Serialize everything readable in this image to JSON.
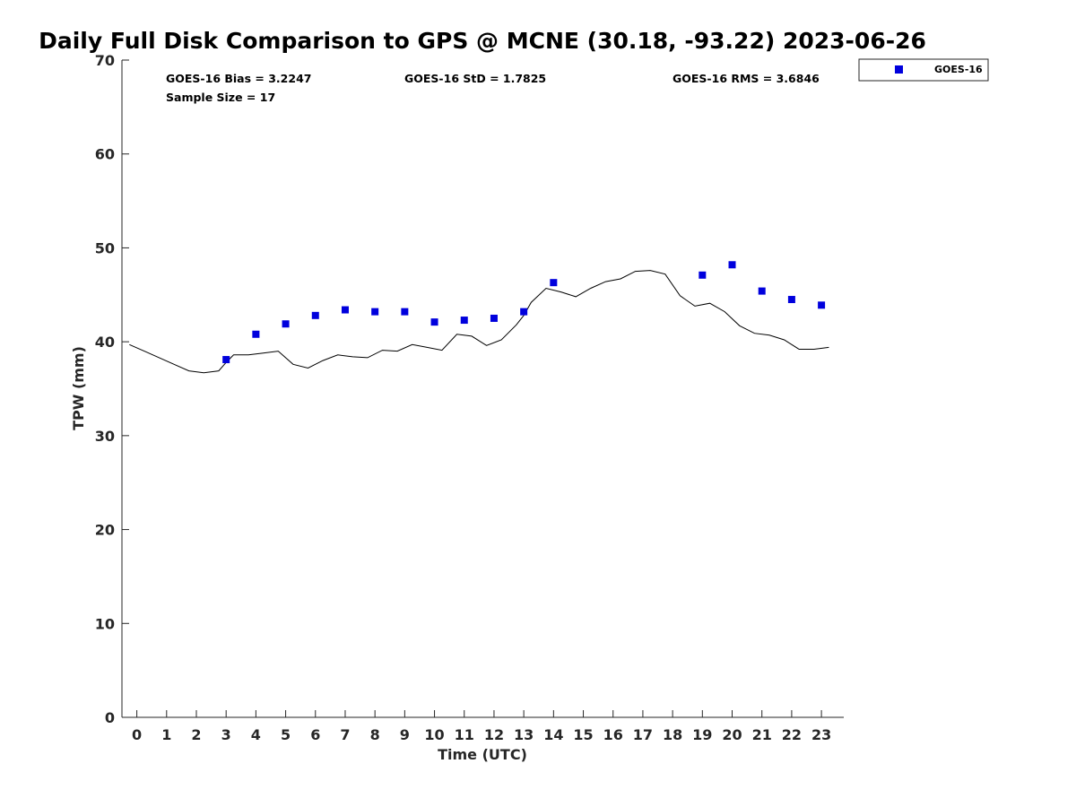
{
  "chart_data": {
    "type": "scatter",
    "title": "Daily Full Disk Comparison to GPS @ MCNE (30.18, -93.22) 2023-06-26",
    "xlabel": "Time (UTC)",
    "ylabel": "TPW (mm)",
    "xlim": [
      -0.5,
      23.75
    ],
    "ylim": [
      0,
      70
    ],
    "x_ticks": [
      0,
      1,
      2,
      3,
      4,
      5,
      6,
      7,
      8,
      9,
      10,
      11,
      12,
      13,
      14,
      15,
      16,
      17,
      18,
      19,
      20,
      21,
      22,
      23
    ],
    "y_ticks": [
      0,
      10,
      20,
      30,
      40,
      50,
      60,
      70
    ],
    "grid": false,
    "stats": {
      "bias": "GOES-16 Bias = 3.2247",
      "std": "GOES-16 StD = 1.7825",
      "rms": "GOES-16 RMS = 3.6846",
      "sample": "Sample Size = 17"
    },
    "legend": {
      "placement": "top-right, outside plot",
      "entries": [
        "GOES-16"
      ]
    },
    "series": [
      {
        "name": "GOES-16",
        "kind": "scatter",
        "color": "#0000dd",
        "marker": "square",
        "x": [
          3,
          4,
          5,
          6,
          7,
          8,
          9,
          10,
          11,
          12,
          13,
          14,
          19,
          20,
          21,
          22,
          23
        ],
        "y": [
          38.1,
          40.8,
          41.9,
          42.8,
          43.4,
          43.2,
          43.2,
          42.1,
          42.3,
          42.5,
          43.2,
          46.3,
          47.1,
          48.2,
          45.4,
          44.5,
          43.9
        ]
      },
      {
        "kind": "line",
        "color": "#000000",
        "x": [
          -0.25,
          0.25,
          0.75,
          1.25,
          1.75,
          2.25,
          2.75,
          3.0,
          3.25,
          3.75,
          4.25,
          4.75,
          5.25,
          5.75,
          6.25,
          6.75,
          7.25,
          7.75,
          8.25,
          8.75,
          9.25,
          9.75,
          10.25,
          10.75,
          11.25,
          11.75,
          12.25,
          12.75,
          13.0,
          13.25,
          13.75,
          14.25,
          14.75,
          15.25,
          15.75,
          16.25,
          16.75,
          17.25,
          17.75,
          18.25,
          18.75,
          19.25,
          19.75,
          20.25,
          20.75,
          21.25,
          21.75,
          22.25,
          22.75,
          23.25
        ],
        "y": [
          39.7,
          39.0,
          38.3,
          37.6,
          36.9,
          36.7,
          36.9,
          37.8,
          38.6,
          38.6,
          38.8,
          39.0,
          37.6,
          37.2,
          38.0,
          38.6,
          38.4,
          38.3,
          39.1,
          39.0,
          39.7,
          39.4,
          39.1,
          40.8,
          40.6,
          39.6,
          40.2,
          41.8,
          42.8,
          44.2,
          45.7,
          45.3,
          44.8,
          45.7,
          46.4,
          46.7,
          47.5,
          47.6,
          47.2,
          44.9,
          43.8,
          44.1,
          43.2,
          41.7,
          40.9,
          40.7,
          40.2,
          39.2,
          39.2,
          39.4
        ]
      }
    ]
  }
}
